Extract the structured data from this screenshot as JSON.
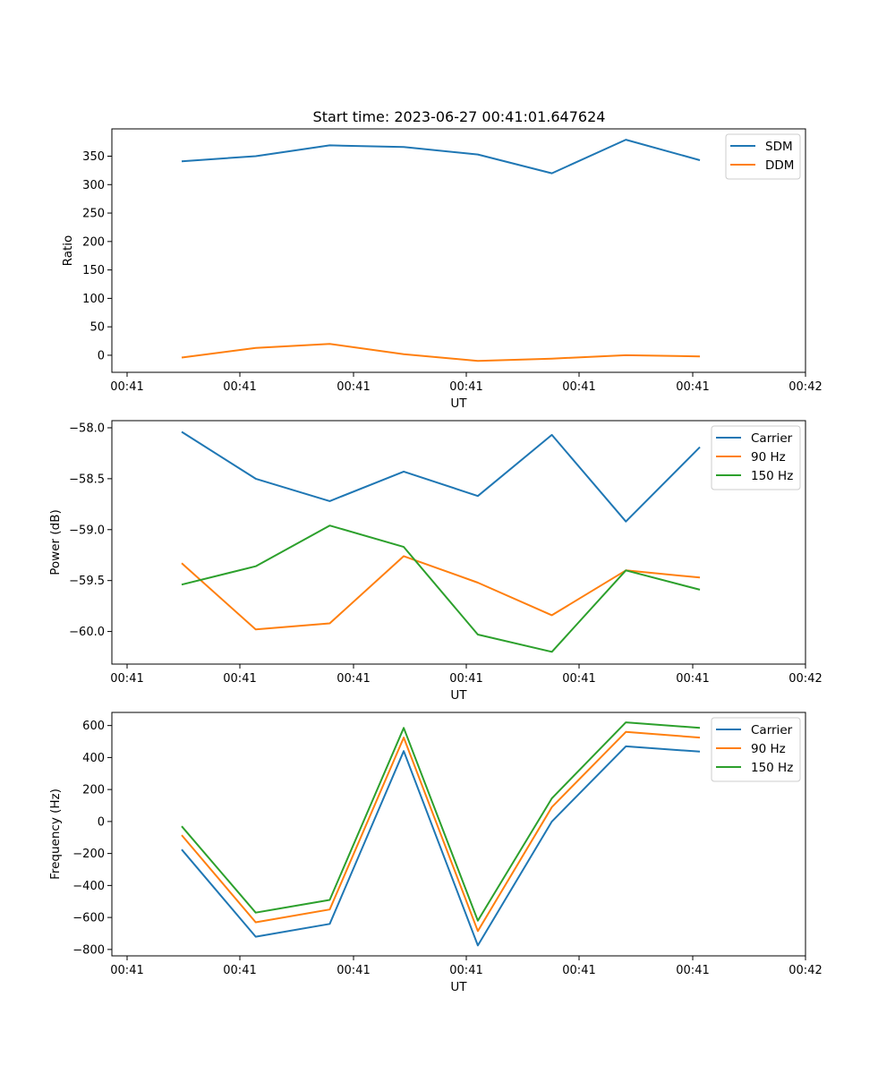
{
  "figure": {
    "title": "Start time: 2023-06-27 00:41:01.647624"
  },
  "colors": {
    "series1": "#1f77b4",
    "series2": "#ff7f0e",
    "series3": "#2ca02c"
  },
  "chart_data": [
    {
      "type": "line",
      "title": "Start time: 2023-06-27 00:41:01.647624",
      "xlabel": "UT",
      "ylabel": "Ratio",
      "xticks": [
        "00:41",
        "00:41",
        "00:41",
        "00:41",
        "00:41",
        "00:41",
        "00:42"
      ],
      "yticks": [
        0,
        50,
        100,
        150,
        200,
        250,
        300,
        350
      ],
      "ylim": [
        -30,
        398
      ],
      "legend_position": "top-right",
      "x": [
        1,
        2,
        3,
        4,
        5,
        6,
        7,
        8
      ],
      "series": [
        {
          "name": "SDM",
          "color": "#1f77b4",
          "values": [
            341,
            350,
            369,
            366,
            353,
            320,
            379,
            343
          ]
        },
        {
          "name": "DDM",
          "color": "#ff7f0e",
          "values": [
            -4,
            13,
            20,
            2,
            -10,
            -6,
            0,
            -2
          ]
        }
      ]
    },
    {
      "type": "line",
      "title": "",
      "xlabel": "UT",
      "ylabel": "Power (dB)",
      "xticks": [
        "00:41",
        "00:41",
        "00:41",
        "00:41",
        "00:41",
        "00:41",
        "00:42"
      ],
      "yticks": [
        -58.0,
        -58.5,
        -59.0,
        -59.5,
        -60.0
      ],
      "ylim": [
        -60.32,
        -57.93
      ],
      "legend_position": "top-right",
      "x": [
        1,
        2,
        3,
        4,
        5,
        6,
        7,
        8
      ],
      "series": [
        {
          "name": "Carrier",
          "color": "#1f77b4",
          "values": [
            -58.04,
            -58.5,
            -58.72,
            -58.43,
            -58.67,
            -58.07,
            -58.92,
            -58.19
          ]
        },
        {
          "name": "90 Hz",
          "color": "#ff7f0e",
          "values": [
            -59.33,
            -59.98,
            -59.92,
            -59.26,
            -59.52,
            -59.84,
            -59.4,
            -59.47
          ]
        },
        {
          "name": "150 Hz",
          "color": "#2ca02c",
          "values": [
            -59.54,
            -59.36,
            -58.96,
            -59.17,
            -60.03,
            -60.2,
            -59.4,
            -59.59
          ]
        }
      ]
    },
    {
      "type": "line",
      "title": "",
      "xlabel": "UT",
      "ylabel": "Frequency (Hz)",
      "xticks": [
        "00:41",
        "00:41",
        "00:41",
        "00:41",
        "00:41",
        "00:41",
        "00:42"
      ],
      "yticks": [
        600,
        400,
        200,
        0,
        -200,
        -400,
        -600,
        -800
      ],
      "ylim": [
        -840,
        682
      ],
      "legend_position": "top-right",
      "x": [
        1,
        2,
        3,
        4,
        5,
        6,
        7,
        8
      ],
      "series": [
        {
          "name": "Carrier",
          "color": "#1f77b4",
          "values": [
            -175,
            -720,
            -640,
            440,
            -775,
            0,
            470,
            437
          ]
        },
        {
          "name": "90 Hz",
          "color": "#ff7f0e",
          "values": [
            -85,
            -630,
            -550,
            525,
            -685,
            90,
            560,
            525
          ]
        },
        {
          "name": "150 Hz",
          "color": "#2ca02c",
          "values": [
            -30,
            -570,
            -490,
            585,
            -620,
            145,
            620,
            585
          ]
        }
      ]
    }
  ]
}
